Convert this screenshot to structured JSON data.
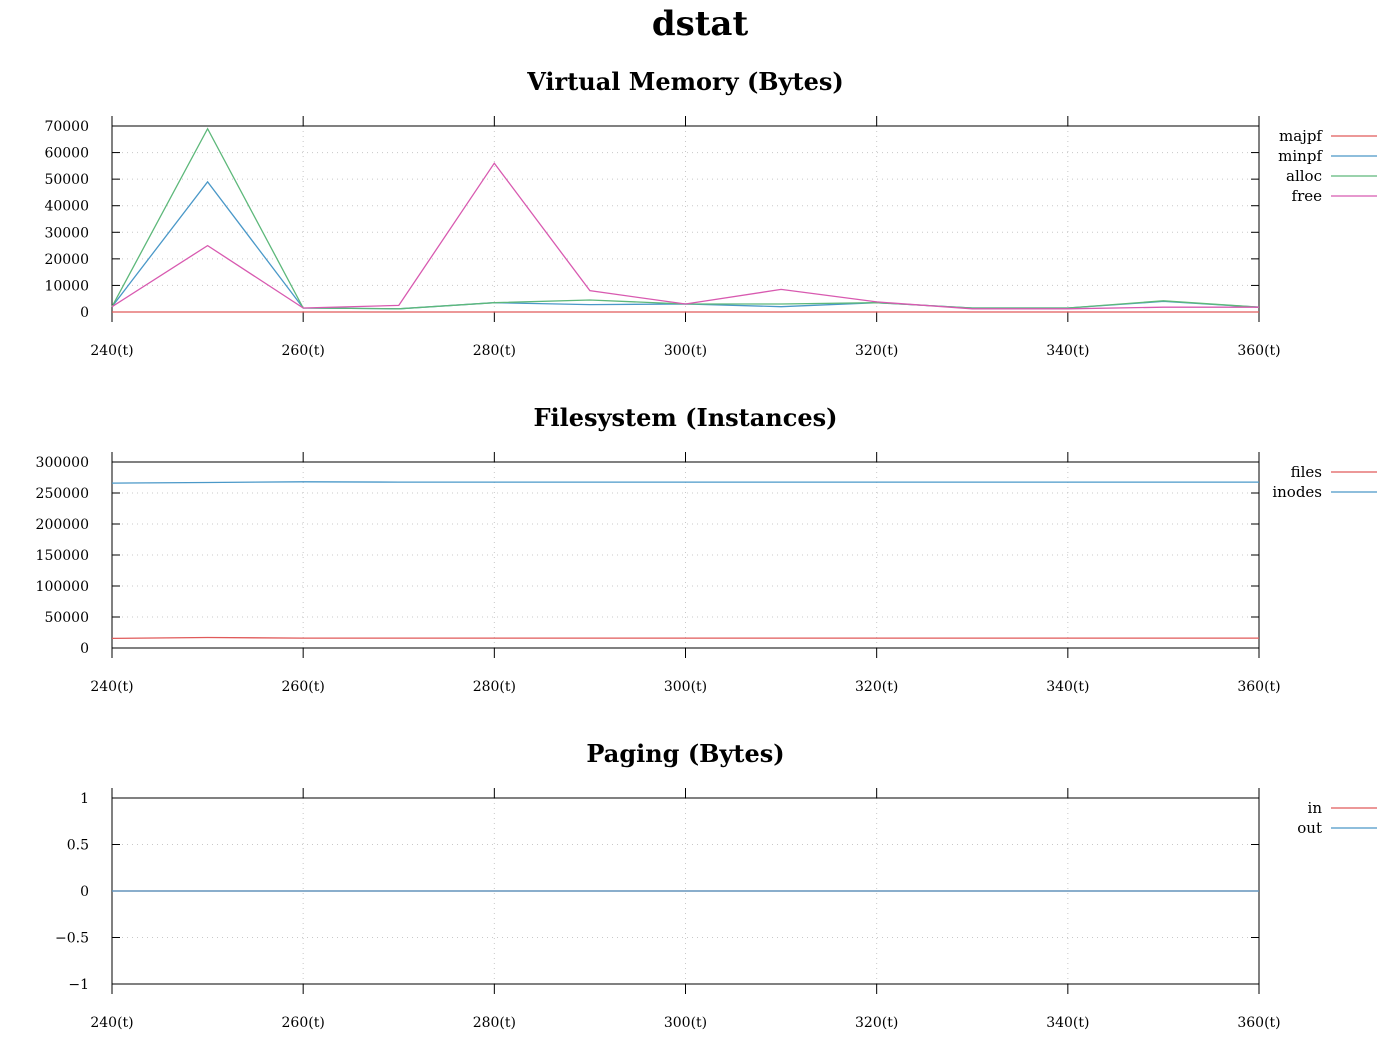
{
  "title": "dstat",
  "chart_data": [
    {
      "type": "line",
      "title": "Virtual Memory (Bytes)",
      "x": [
        240,
        250,
        260,
        270,
        280,
        290,
        300,
        310,
        320,
        330,
        340,
        350,
        360
      ],
      "x_ticks": [
        "240(t)",
        "260(t)",
        "280(t)",
        "300(t)",
        "320(t)",
        "340(t)",
        "360(t)"
      ],
      "x_tick_values": [
        240,
        260,
        280,
        300,
        320,
        340,
        360
      ],
      "xlim": [
        240,
        360
      ],
      "ylim": [
        0,
        70000
      ],
      "y_ticks": [
        0,
        10000,
        20000,
        30000,
        40000,
        50000,
        60000,
        70000
      ],
      "y_tick_labels": [
        "0",
        "10000",
        "20000",
        "30000",
        "40000",
        "50000",
        "60000",
        "70000"
      ],
      "grid": true,
      "legend": "right",
      "series": [
        {
          "name": "majpf",
          "color": "#e05a5a",
          "values": [
            0,
            0,
            0,
            0,
            0,
            0,
            0,
            0,
            0,
            0,
            0,
            0,
            0
          ]
        },
        {
          "name": "minpf",
          "color": "#4a98c8",
          "values": [
            2000,
            49000,
            1500,
            1200,
            3500,
            2800,
            3000,
            2000,
            3500,
            1500,
            1500,
            4000,
            1800
          ]
        },
        {
          "name": "alloc",
          "color": "#5db87a",
          "values": [
            2000,
            69000,
            1500,
            1200,
            3500,
            4500,
            3000,
            3000,
            3500,
            1500,
            1500,
            4200,
            1800
          ]
        },
        {
          "name": "free",
          "color": "#d85ab0",
          "values": [
            2000,
            25000,
            1500,
            2500,
            56000,
            8000,
            3000,
            8500,
            3800,
            1200,
            1200,
            1800,
            1800
          ]
        }
      ]
    },
    {
      "type": "line",
      "title": "Filesystem (Instances)",
      "x": [
        240,
        250,
        260,
        270,
        280,
        290,
        300,
        310,
        320,
        330,
        340,
        350,
        360
      ],
      "x_ticks": [
        "240(t)",
        "260(t)",
        "280(t)",
        "300(t)",
        "320(t)",
        "340(t)",
        "360(t)"
      ],
      "x_tick_values": [
        240,
        260,
        280,
        300,
        320,
        340,
        360
      ],
      "xlim": [
        240,
        360
      ],
      "ylim": [
        0,
        300000
      ],
      "y_ticks": [
        0,
        50000,
        100000,
        150000,
        200000,
        250000,
        300000
      ],
      "y_tick_labels": [
        "0",
        "50000",
        "100000",
        "150000",
        "200000",
        "250000",
        "300000"
      ],
      "grid": true,
      "legend": "right",
      "series": [
        {
          "name": "files",
          "color": "#e05a5a",
          "values": [
            15500,
            17000,
            16000,
            16000,
            16000,
            16000,
            16000,
            16000,
            16000,
            16000,
            16000,
            16000,
            16000
          ]
        },
        {
          "name": "inodes",
          "color": "#4a98c8",
          "values": [
            266000,
            267000,
            268000,
            267500,
            267500,
            267500,
            267500,
            267500,
            267500,
            267500,
            267500,
            267500,
            267500
          ]
        }
      ]
    },
    {
      "type": "line",
      "title": "Paging (Bytes)",
      "x": [
        240,
        250,
        260,
        270,
        280,
        290,
        300,
        310,
        320,
        330,
        340,
        350,
        360
      ],
      "x_ticks": [
        "240(t)",
        "260(t)",
        "280(t)",
        "300(t)",
        "320(t)",
        "340(t)",
        "360(t)"
      ],
      "x_tick_values": [
        240,
        260,
        280,
        300,
        320,
        340,
        360
      ],
      "xlim": [
        240,
        360
      ],
      "ylim": [
        -1,
        1
      ],
      "y_ticks": [
        -1,
        -0.5,
        0,
        0.5,
        1
      ],
      "y_tick_labels": [
        "−1",
        "−0.5",
        "0",
        "0.5",
        "1"
      ],
      "grid": true,
      "legend": "right",
      "series": [
        {
          "name": "in",
          "color": "#e05a5a",
          "values": [
            0,
            0,
            0,
            0,
            0,
            0,
            0,
            0,
            0,
            0,
            0,
            0,
            0
          ]
        },
        {
          "name": "out",
          "color": "#4a98c8",
          "values": [
            0,
            0,
            0,
            0,
            0,
            0,
            0,
            0,
            0,
            0,
            0,
            0,
            0
          ]
        }
      ]
    }
  ]
}
